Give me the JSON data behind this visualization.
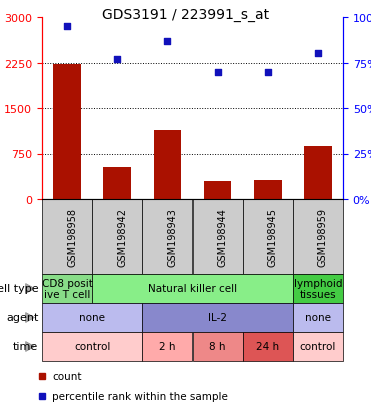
{
  "title": "GDS3191 / 223991_s_at",
  "samples": [
    "GSM198958",
    "GSM198942",
    "GSM198943",
    "GSM198944",
    "GSM198945",
    "GSM198959"
  ],
  "counts": [
    2230,
    530,
    1130,
    290,
    310,
    870
  ],
  "percentiles": [
    95,
    77,
    87,
    70,
    70,
    80
  ],
  "ylim_left": [
    0,
    3000
  ],
  "ylim_right": [
    0,
    100
  ],
  "yticks_left": [
    0,
    750,
    1500,
    2250,
    3000
  ],
  "yticks_right": [
    0,
    25,
    50,
    75,
    100
  ],
  "bar_color": "#aa1100",
  "dot_color": "#1111bb",
  "cell_type_cells": [
    {
      "label": "CD8 posit\nive T cell",
      "color": "#88dd88",
      "span": 1
    },
    {
      "label": "Natural killer cell",
      "color": "#88ee88",
      "span": 4
    },
    {
      "label": "lymphoid\ntissues",
      "color": "#44cc44",
      "span": 1
    }
  ],
  "agent_cells": [
    {
      "label": "none",
      "color": "#bbbbee",
      "span": 2
    },
    {
      "label": "IL-2",
      "color": "#8888cc",
      "span": 3
    },
    {
      "label": "none",
      "color": "#bbbbee",
      "span": 1
    }
  ],
  "time_cells": [
    {
      "label": "control",
      "color": "#ffcccc",
      "span": 2
    },
    {
      "label": "2 h",
      "color": "#ffaaaa",
      "span": 1
    },
    {
      "label": "8 h",
      "color": "#ee8888",
      "span": 1
    },
    {
      "label": "24 h",
      "color": "#dd5555",
      "span": 1
    },
    {
      "label": "control",
      "color": "#ffcccc",
      "span": 1
    }
  ],
  "row_labels": [
    "cell type",
    "agent",
    "time"
  ],
  "legend_items": [
    {
      "label": "count",
      "color": "#aa1100"
    },
    {
      "label": "percentile rank within the sample",
      "color": "#1111bb"
    }
  ],
  "sample_bg": "#cccccc",
  "plot_bg": "#ffffff"
}
